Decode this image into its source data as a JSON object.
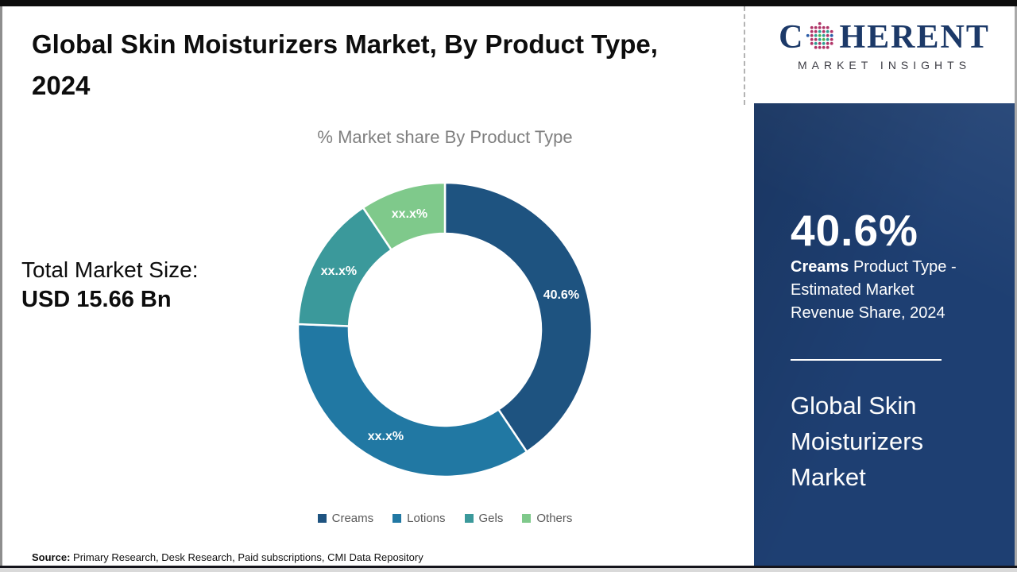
{
  "header": {
    "title": "Global Skin Moisturizers Market, By Product Type, 2024"
  },
  "left_stat": {
    "label": "Total Market Size:",
    "value": "USD 15.66 Bn"
  },
  "chart_data": {
    "type": "donut",
    "title": "% Market share By Product Type",
    "categories": [
      "Creams",
      "Lotions",
      "Gels",
      "Others"
    ],
    "values": [
      40.6,
      35.0,
      15.0,
      9.4
    ],
    "slice_labels": [
      "40.6%",
      "xx.x%",
      "xx.x%",
      "xx.x%"
    ],
    "colors": [
      "#1e5380",
      "#2178a3",
      "#3b999b",
      "#7fc98b"
    ],
    "label_color": "#ffffff",
    "legend_position": "bottom",
    "legend_text_color": "#595959"
  },
  "sidebar": {
    "logo": {
      "letter_c": "C",
      "letters_rest": "HERENT",
      "globe_icon": "dotted-globe",
      "tagline": "MARKET INSIGHTS",
      "brand_color": "#1c3968"
    },
    "highlight_value": "40.6%",
    "highlight_bold": "Creams",
    "highlight_rest": " Product Type - Estimated Market Revenue Share, 2024",
    "panel_title": "Global Skin Moisturizers Market",
    "panel_color": "#1e3f72"
  },
  "footer": {
    "source_label": "Source:",
    "source_text": " Primary Research, Desk Research, Paid subscriptions, CMI Data Repository"
  }
}
